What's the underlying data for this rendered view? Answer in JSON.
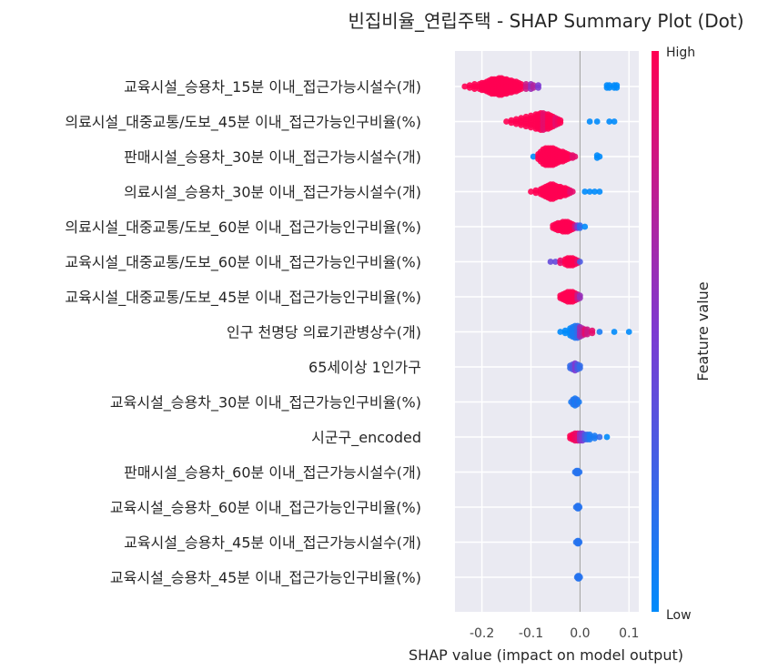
{
  "chart_data": {
    "type": "scatter",
    "subtype": "shap-summary-dot",
    "title": "빈집비율_연립주택 - SHAP Summary Plot (Dot)",
    "xlabel": "SHAP value (impact on model output)",
    "ylabel": "",
    "xlim": [
      -0.255,
      0.12
    ],
    "x_ticks": [
      -0.2,
      -0.1,
      0.0,
      0.1
    ],
    "x_tick_labels": [
      "-0.2",
      "-0.1",
      "0.0",
      "0.1"
    ],
    "grid": true,
    "colorbar": {
      "label": "Feature value",
      "high_label": "High",
      "low_label": "Low",
      "high_color": "#ff0052",
      "low_color": "#008bfb"
    },
    "features": [
      {
        "name": "교육시설_승용차_15분 이내_접근가능시설수(개)",
        "points": [
          [
            -0.235,
            1
          ],
          [
            -0.225,
            1
          ],
          [
            -0.215,
            1
          ],
          [
            -0.205,
            1
          ],
          [
            -0.2,
            1
          ],
          [
            -0.195,
            1
          ],
          [
            -0.19,
            1
          ],
          [
            -0.185,
            1
          ],
          [
            -0.18,
            1
          ],
          [
            -0.175,
            1
          ],
          [
            -0.17,
            1
          ],
          [
            -0.165,
            1
          ],
          [
            -0.16,
            1
          ],
          [
            -0.155,
            1
          ],
          [
            -0.15,
            1
          ],
          [
            -0.145,
            1
          ],
          [
            -0.14,
            1
          ],
          [
            -0.135,
            1
          ],
          [
            -0.13,
            1
          ],
          [
            -0.125,
            1
          ],
          [
            -0.12,
            1
          ],
          [
            -0.11,
            0.8
          ],
          [
            -0.1,
            0.6
          ],
          [
            -0.095,
            0.7
          ],
          [
            -0.085,
            0.5
          ],
          [
            0.055,
            0
          ],
          [
            0.06,
            0
          ],
          [
            0.07,
            0
          ],
          [
            0.075,
            0
          ]
        ],
        "counts": [
          1,
          2,
          3,
          3,
          4,
          4,
          5,
          6,
          7,
          7,
          7,
          8,
          8,
          7,
          7,
          6,
          6,
          5,
          5,
          4,
          3,
          3,
          3,
          2,
          2,
          2,
          2,
          2,
          2
        ]
      },
      {
        "name": "의료시설_대중교통/도보_45분 이내_접근가능인구비율(%)",
        "points": [
          [
            -0.15,
            1
          ],
          [
            -0.14,
            1
          ],
          [
            -0.13,
            1
          ],
          [
            -0.12,
            1
          ],
          [
            -0.11,
            1
          ],
          [
            -0.1,
            1
          ],
          [
            -0.09,
            1
          ],
          [
            -0.085,
            1
          ],
          [
            -0.08,
            1
          ],
          [
            -0.075,
            0.9
          ],
          [
            -0.07,
            0.9
          ],
          [
            -0.065,
            1
          ],
          [
            -0.06,
            1
          ],
          [
            -0.055,
            1
          ],
          [
            -0.05,
            0.9
          ],
          [
            -0.045,
            0.95
          ],
          [
            -0.04,
            1
          ],
          [
            0.02,
            0
          ],
          [
            0.035,
            0
          ],
          [
            0.06,
            0
          ],
          [
            0.07,
            0
          ]
        ],
        "counts": [
          1,
          2,
          3,
          4,
          5,
          6,
          7,
          7,
          8,
          8,
          7,
          7,
          6,
          5,
          4,
          3,
          2,
          1,
          1,
          1,
          1
        ]
      },
      {
        "name": "판매시설_승용차_30분 이내_접근가능시설수(개)",
        "points": [
          [
            -0.095,
            0
          ],
          [
            -0.085,
            1
          ],
          [
            -0.08,
            1
          ],
          [
            -0.075,
            1
          ],
          [
            -0.07,
            1
          ],
          [
            -0.065,
            1
          ],
          [
            -0.06,
            1
          ],
          [
            -0.055,
            1
          ],
          [
            -0.05,
            1
          ],
          [
            -0.045,
            1
          ],
          [
            -0.04,
            1
          ],
          [
            -0.035,
            1
          ],
          [
            -0.03,
            1
          ],
          [
            -0.025,
            1
          ],
          [
            -0.02,
            1
          ],
          [
            -0.015,
            0.9
          ],
          [
            -0.01,
            0.9
          ],
          [
            0.035,
            0
          ],
          [
            0.04,
            0
          ]
        ],
        "counts": [
          1,
          3,
          5,
          7,
          8,
          8,
          8,
          8,
          7,
          6,
          5,
          5,
          4,
          3,
          2,
          2,
          1,
          2,
          1
        ]
      },
      {
        "name": "의료시설_승용차_30분 이내_접근가능시설수(개)",
        "points": [
          [
            -0.1,
            1
          ],
          [
            -0.09,
            1
          ],
          [
            -0.08,
            1
          ],
          [
            -0.075,
            1
          ],
          [
            -0.07,
            1
          ],
          [
            -0.065,
            1
          ],
          [
            -0.06,
            1
          ],
          [
            -0.055,
            1
          ],
          [
            -0.05,
            1
          ],
          [
            -0.045,
            1
          ],
          [
            -0.04,
            1
          ],
          [
            -0.035,
            1
          ],
          [
            -0.03,
            1
          ],
          [
            -0.025,
            1
          ],
          [
            -0.02,
            0.9
          ],
          [
            -0.015,
            0.9
          ],
          [
            0.01,
            0
          ],
          [
            0.02,
            0
          ],
          [
            0.03,
            0
          ],
          [
            0.04,
            0
          ]
        ],
        "counts": [
          1,
          2,
          3,
          4,
          5,
          6,
          7,
          7,
          6,
          5,
          5,
          4,
          4,
          3,
          2,
          1,
          1,
          1,
          1,
          1
        ]
      },
      {
        "name": "의료시설_대중교통/도보_60분 이내_접근가능인구비율(%)",
        "points": [
          [
            -0.055,
            1
          ],
          [
            -0.05,
            1
          ],
          [
            -0.045,
            1
          ],
          [
            -0.04,
            1
          ],
          [
            -0.035,
            1
          ],
          [
            -0.03,
            1
          ],
          [
            -0.025,
            1
          ],
          [
            -0.02,
            1
          ],
          [
            -0.015,
            1
          ],
          [
            -0.01,
            0.8
          ],
          [
            -0.005,
            0.5
          ],
          [
            0.0,
            0.2
          ],
          [
            0.01,
            0
          ]
        ],
        "counts": [
          2,
          3,
          4,
          4,
          5,
          5,
          5,
          4,
          3,
          2,
          2,
          2,
          1
        ]
      },
      {
        "name": "교육시설_대중교통/도보_60분 이내_접근가능인구비율(%)",
        "points": [
          [
            -0.06,
            0.4
          ],
          [
            -0.05,
            0.4
          ],
          [
            -0.04,
            0.9
          ],
          [
            -0.03,
            1
          ],
          [
            -0.025,
            1
          ],
          [
            -0.02,
            1
          ],
          [
            -0.015,
            1
          ],
          [
            -0.01,
            1
          ],
          [
            -0.005,
            0.9
          ],
          [
            0.0,
            0.3
          ]
        ],
        "counts": [
          1,
          1,
          2,
          3,
          4,
          4,
          4,
          3,
          2,
          1
        ]
      },
      {
        "name": "교육시설_대중교통/도보_45분 이내_접근가능인구비율(%)",
        "points": [
          [
            -0.04,
            1
          ],
          [
            -0.035,
            1
          ],
          [
            -0.03,
            1
          ],
          [
            -0.025,
            1
          ],
          [
            -0.02,
            1
          ],
          [
            -0.015,
            1
          ],
          [
            -0.01,
            1
          ],
          [
            -0.005,
            0.8
          ],
          [
            0.0,
            0.6
          ]
        ],
        "counts": [
          2,
          3,
          4,
          5,
          5,
          5,
          4,
          3,
          2
        ]
      },
      {
        "name": "인구 천명당 의료기관병상수(개)",
        "points": [
          [
            -0.04,
            0
          ],
          [
            -0.03,
            0
          ],
          [
            -0.02,
            0
          ],
          [
            -0.015,
            0.1
          ],
          [
            -0.01,
            0.1
          ],
          [
            -0.005,
            0.2
          ],
          [
            0.0,
            0.6
          ],
          [
            0.005,
            0.7
          ],
          [
            0.01,
            0.9
          ],
          [
            0.015,
            0.8
          ],
          [
            0.025,
            0.9
          ],
          [
            0.04,
            0.1
          ],
          [
            0.07,
            0
          ],
          [
            0.1,
            0
          ]
        ],
        "counts": [
          1,
          2,
          4,
          5,
          6,
          6,
          5,
          4,
          3,
          3,
          2,
          1,
          1,
          1
        ]
      },
      {
        "name": "65세이상 1인가구",
        "points": [
          [
            -0.02,
            0.2
          ],
          [
            -0.015,
            0.3
          ],
          [
            -0.01,
            0.5
          ],
          [
            -0.005,
            0.3
          ],
          [
            0.0,
            0.2
          ]
        ],
        "counts": [
          2,
          3,
          4,
          3,
          2
        ]
      },
      {
        "name": "교육시설_승용차_30분 이내_접근가능인구비율(%)",
        "points": [
          [
            -0.018,
            0.1
          ],
          [
            -0.014,
            0.15
          ],
          [
            -0.01,
            0.1
          ],
          [
            -0.006,
            0.15
          ],
          [
            -0.002,
            0.1
          ]
        ],
        "counts": [
          1,
          3,
          4,
          3,
          1
        ]
      },
      {
        "name": "시군구_encoded",
        "points": [
          [
            -0.02,
            1
          ],
          [
            -0.015,
            1
          ],
          [
            -0.01,
            0.95
          ],
          [
            -0.005,
            0.9
          ],
          [
            0.0,
            0.6
          ],
          [
            0.005,
            0.5
          ],
          [
            0.01,
            0.3
          ],
          [
            0.015,
            0.2
          ],
          [
            0.02,
            0.1
          ],
          [
            0.03,
            0.1
          ],
          [
            0.04,
            0.2
          ],
          [
            0.055,
            0
          ]
        ],
        "counts": [
          2,
          3,
          4,
          4,
          4,
          4,
          3,
          3,
          3,
          2,
          1,
          1
        ]
      },
      {
        "name": "판매시설_승용차_60분 이내_접근가능시설수(개)",
        "points": [
          [
            -0.01,
            0.15
          ],
          [
            -0.007,
            0.15
          ],
          [
            -0.004,
            0.15
          ],
          [
            -0.001,
            0.15
          ]
        ],
        "counts": [
          1,
          2,
          2,
          1
        ]
      },
      {
        "name": "교육시설_승용차_60분 이내_접근가능인구비율(%)",
        "points": [
          [
            -0.008,
            0.15
          ],
          [
            -0.005,
            0.15
          ],
          [
            -0.003,
            0.15
          ],
          [
            -0.001,
            0.15
          ]
        ],
        "counts": [
          1,
          2,
          2,
          1
        ]
      },
      {
        "name": "교육시설_승용차_45분 이내_접근가능시설수(개)",
        "points": [
          [
            -0.008,
            0.15
          ],
          [
            -0.005,
            0.15
          ],
          [
            -0.003,
            0.15
          ],
          [
            -0.001,
            0.15
          ]
        ],
        "counts": [
          1,
          2,
          2,
          1
        ]
      },
      {
        "name": "교육시설_승용차_45분 이내_접근가능인구비율(%)",
        "points": [
          [
            -0.006,
            0.15
          ],
          [
            -0.004,
            0.15
          ],
          [
            -0.002,
            0.15
          ],
          [
            0.0,
            0.15
          ]
        ],
        "counts": [
          1,
          2,
          2,
          1
        ]
      }
    ]
  }
}
